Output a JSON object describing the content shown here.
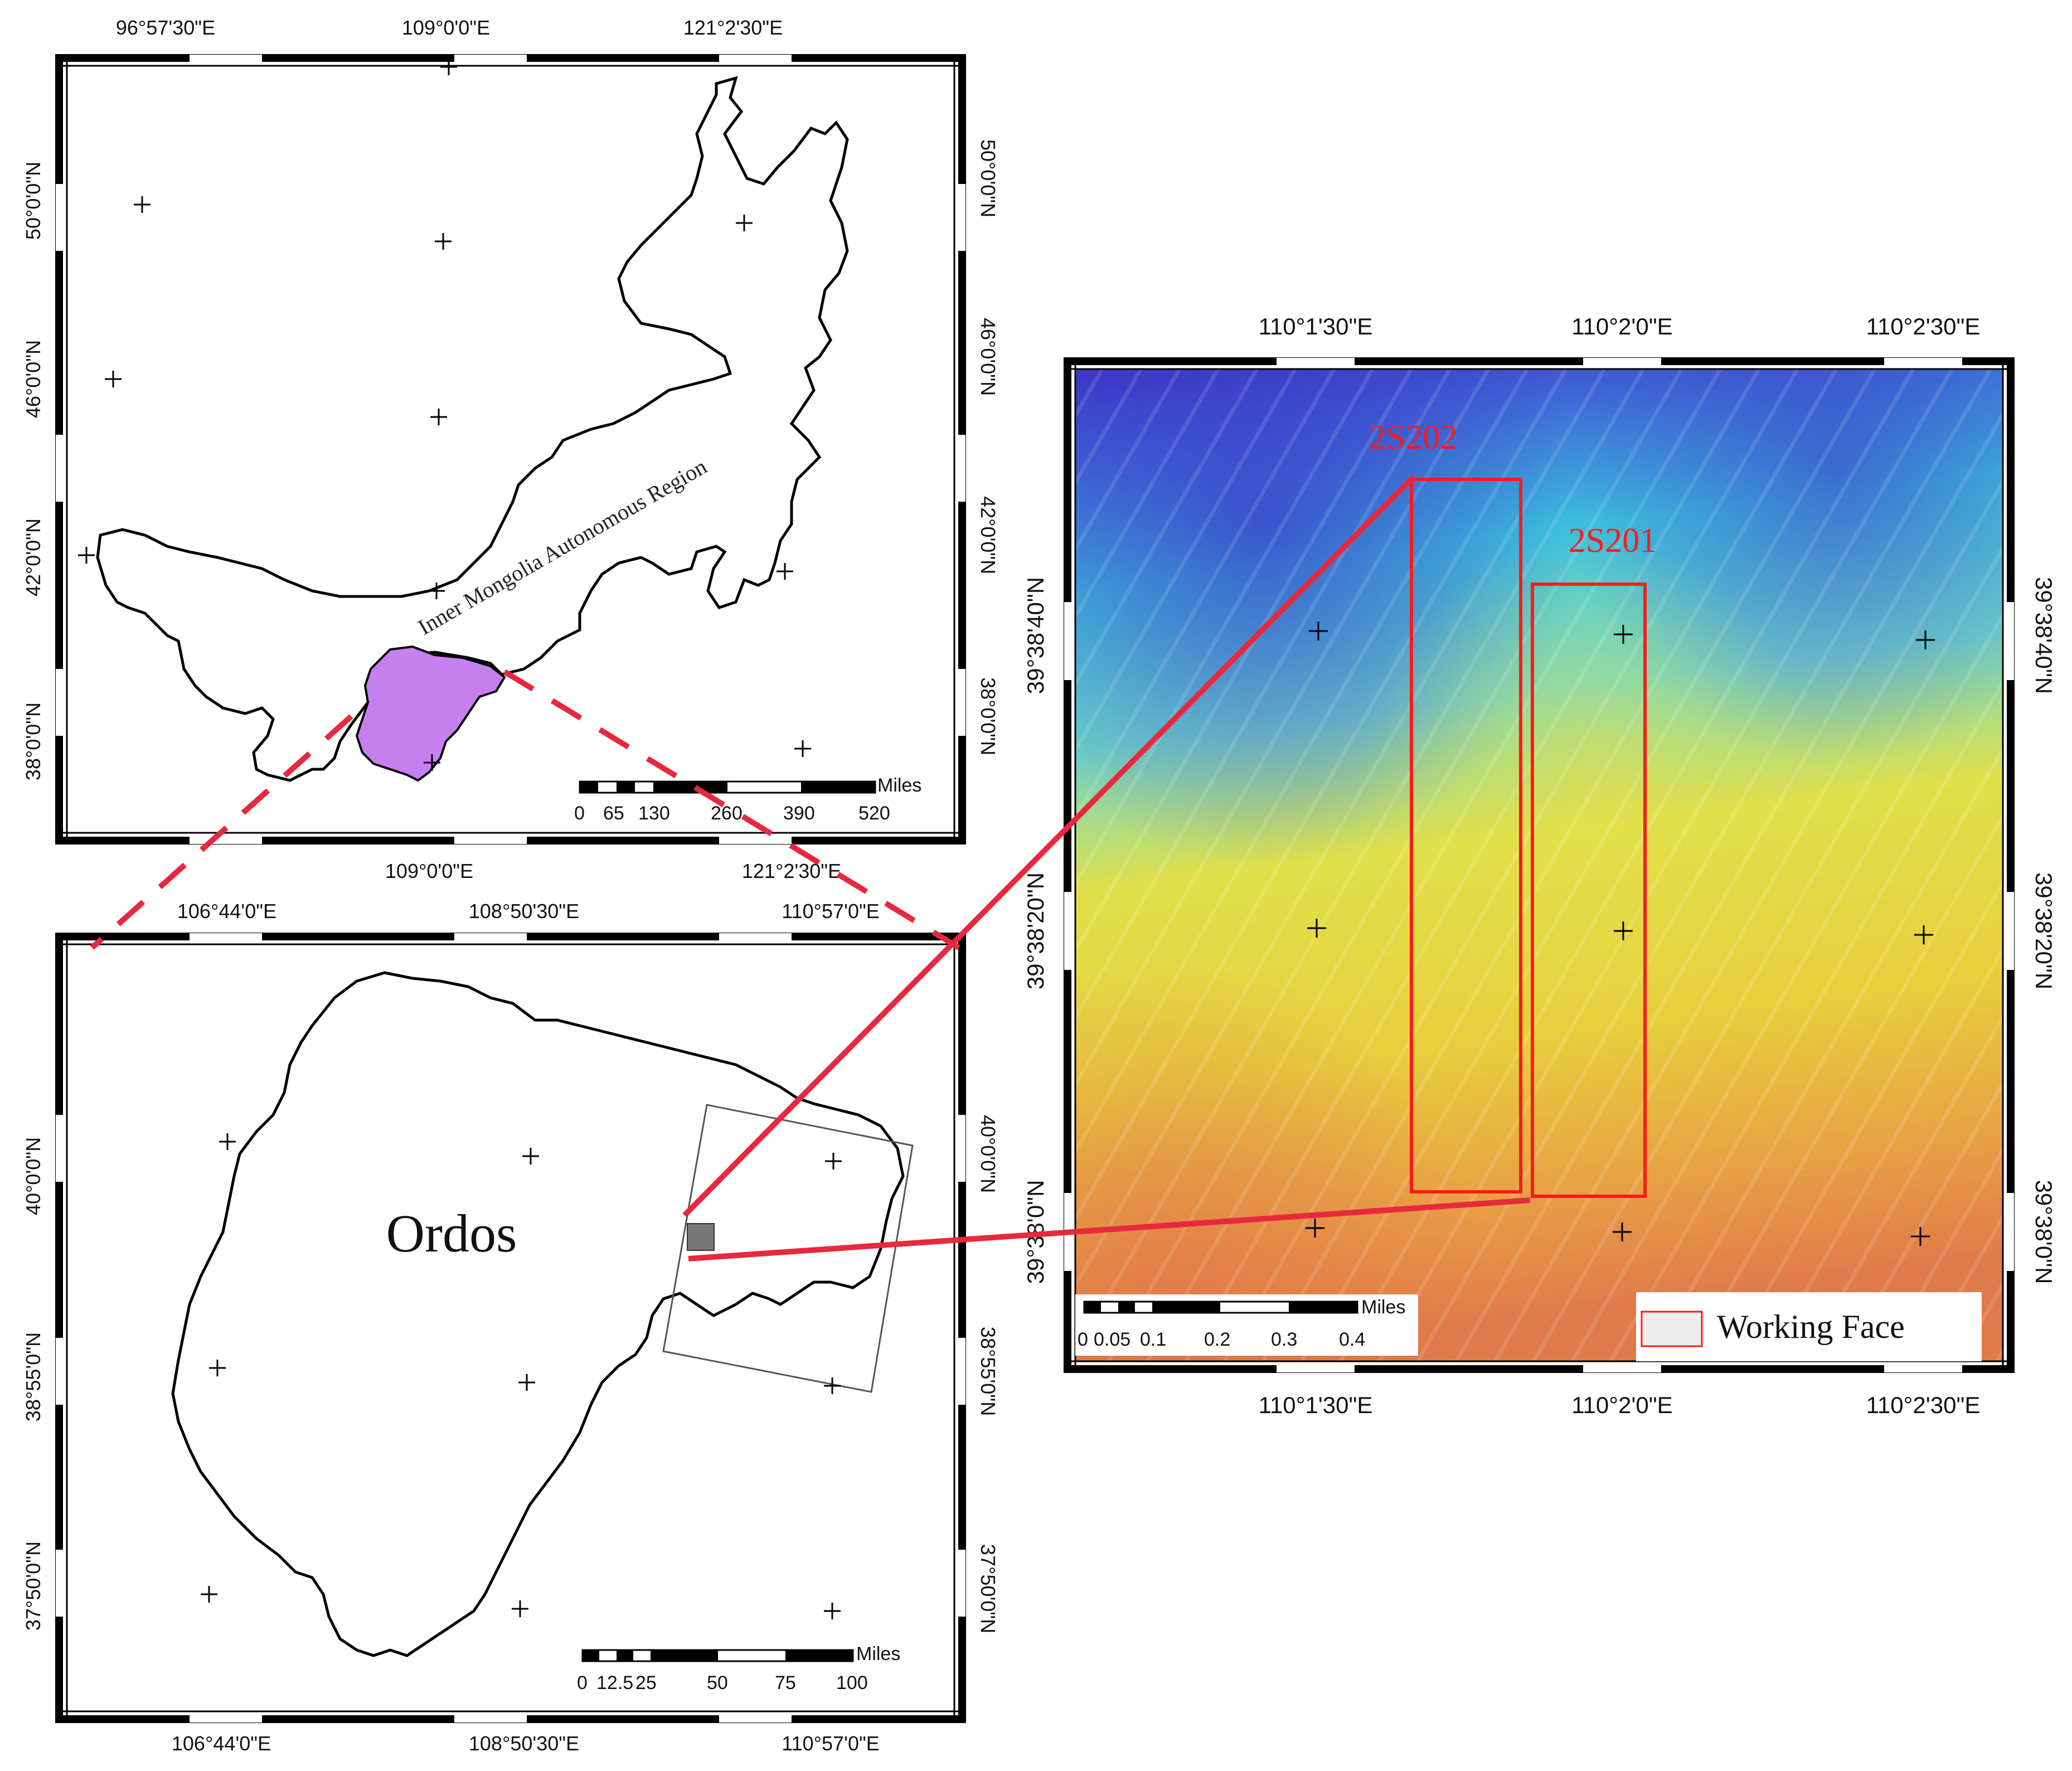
{
  "colors": {
    "frame": "#000000",
    "inner_mongolia_fill": "#ffffff",
    "ordos_highlight": "#c77ff0",
    "connector": "#e8283c",
    "working_face": "#ff1a1a",
    "dem_ramp": [
      "#3d33c8",
      "#3ac8e0",
      "#e3e04a",
      "#e8c040",
      "#e28048"
    ]
  },
  "map1": {
    "top_labels": [
      "96°57'30\"E",
      "109°0'0\"E",
      "121°2'30\"E"
    ],
    "bottom_labels": [
      "109°0'0\"E",
      "121°2'30\"E"
    ],
    "lat_labels": [
      "50°0'0\"N",
      "46°0'0\"N",
      "42°0'0\"N",
      "38°0'0\"N"
    ],
    "region_label": "Inner Mongolia Autonomous Region",
    "scale_ticks": [
      "0",
      "65",
      "130",
      "260",
      "390",
      "520"
    ],
    "scale_unit": "Miles"
  },
  "map2": {
    "top_labels": [
      "106°44'0\"E",
      "108°50'30\"E",
      "110°57'0\"E"
    ],
    "bottom_labels": [
      "106°44'0\"E",
      "108°50'30\"E",
      "110°57'0\"E"
    ],
    "lat_labels": [
      "40°0'0\"N",
      "38°55'0\"N",
      "37°50'0\"N"
    ],
    "region_label": "Ordos",
    "scale_ticks": [
      "0",
      "12.5",
      "25",
      "50",
      "75",
      "100"
    ],
    "scale_unit": "Miles"
  },
  "map3": {
    "top_labels": [
      "110°1'30\"E",
      "110°2'0\"E",
      "110°2'30\"E"
    ],
    "bottom_labels": [
      "110°1'30\"E",
      "110°2'0\"E",
      "110°2'30\"E"
    ],
    "lat_labels": [
      "39°38'40\"N",
      "39°38'20\"N",
      "39°38'0\"N"
    ],
    "faces": [
      "2S202",
      "2S201"
    ],
    "scale_ticks": [
      "0",
      "0.05",
      "0.1",
      "0.2",
      "0.3",
      "0.4"
    ],
    "scale_unit": "Miles",
    "legend_label": "Working Face"
  }
}
